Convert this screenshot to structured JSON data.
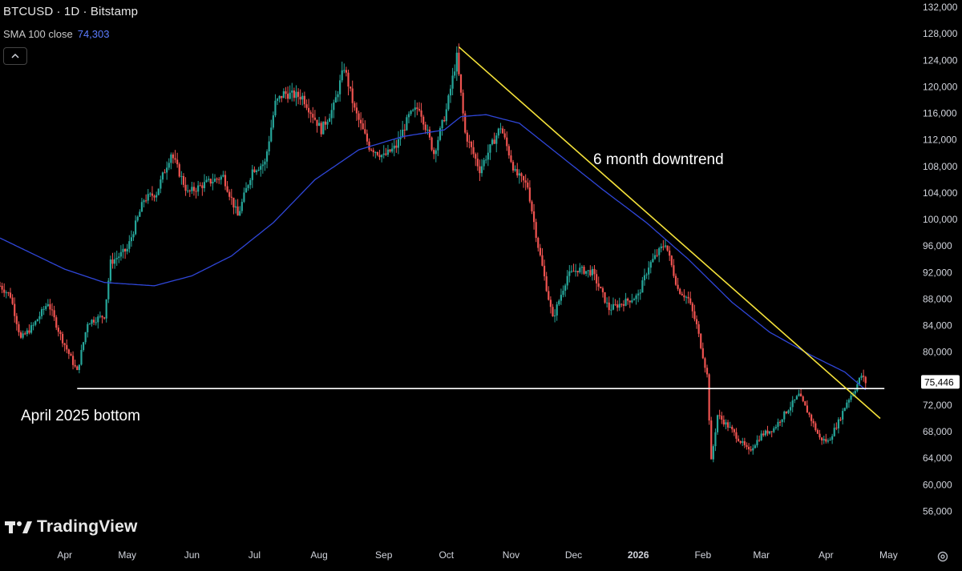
{
  "header": {
    "symbol_line": "BTCUSD · 1D · Bitstamp",
    "indicator_label": "SMA 100 close",
    "indicator_value": "74,303"
  },
  "branding": {
    "name": "TradingView"
  },
  "colors": {
    "up": "#26a69a",
    "down": "#ef5350",
    "sma": "#2f46d8",
    "trendline": "#f5e23a",
    "support": "#ffffff",
    "label_bg": "#ffffff"
  },
  "icons": {
    "collapse": "chevron-up-icon",
    "settings": "gear-icon",
    "logo": "tradingview-logo-icon"
  },
  "chart_data": {
    "type": "candlestick",
    "symbol": "BTCUSD",
    "interval": "1D",
    "exchange": "Bitstamp",
    "ylim": [
      54000,
      132000
    ],
    "y_ticks": [
      "132,000",
      "128,000",
      "124,000",
      "120,000",
      "116,000",
      "112,000",
      "108,000",
      "104,000",
      "100,000",
      "96,000",
      "92,000",
      "88,000",
      "84,000",
      "80,000",
      "72,000",
      "68,000",
      "64,000",
      "60,000",
      "56,000"
    ],
    "y_tick_values": [
      132000,
      128000,
      124000,
      120000,
      116000,
      112000,
      108000,
      104000,
      100000,
      96000,
      92000,
      88000,
      84000,
      80000,
      72000,
      68000,
      64000,
      60000,
      56000
    ],
    "x_ticks": [
      {
        "label": "Apr",
        "date": "2025-04-01"
      },
      {
        "label": "May",
        "date": "2025-05-01"
      },
      {
        "label": "Jun",
        "date": "2025-06-01"
      },
      {
        "label": "Jul",
        "date": "2025-07-01"
      },
      {
        "label": "Aug",
        "date": "2025-08-01"
      },
      {
        "label": "Sep",
        "date": "2025-09-01"
      },
      {
        "label": "Oct",
        "date": "2025-10-01"
      },
      {
        "label": "Nov",
        "date": "2025-11-01"
      },
      {
        "label": "Dec",
        "date": "2025-12-01"
      },
      {
        "label": "2026",
        "date": "2026-01-01",
        "bold": true
      },
      {
        "label": "Feb",
        "date": "2026-02-01"
      },
      {
        "label": "Mar",
        "date": "2026-03-01"
      },
      {
        "label": "Apr",
        "date": "2026-04-01"
      },
      {
        "label": "May",
        "date": "2026-05-01"
      }
    ],
    "x_range": [
      "2025-03-01",
      "2026-05-07"
    ],
    "price_label": "75,446",
    "last_price": 75446,
    "close_series": [
      {
        "date": "2025-03-01",
        "close": 90000
      },
      {
        "date": "2025-03-06",
        "close": 88500
      },
      {
        "date": "2025-03-11",
        "close": 82000
      },
      {
        "date": "2025-03-17",
        "close": 84000
      },
      {
        "date": "2025-03-24",
        "close": 87500
      },
      {
        "date": "2025-03-30",
        "close": 82500
      },
      {
        "date": "2025-04-07",
        "close": 77000
      },
      {
        "date": "2025-04-12",
        "close": 84500
      },
      {
        "date": "2025-04-20",
        "close": 85500
      },
      {
        "date": "2025-04-23",
        "close": 93500
      },
      {
        "date": "2025-05-01",
        "close": 95500
      },
      {
        "date": "2025-05-09",
        "close": 103000
      },
      {
        "date": "2025-05-15",
        "close": 104000
      },
      {
        "date": "2025-05-22",
        "close": 110000
      },
      {
        "date": "2025-05-30",
        "close": 104000
      },
      {
        "date": "2025-06-08",
        "close": 105500
      },
      {
        "date": "2025-06-16",
        "close": 106500
      },
      {
        "date": "2025-06-23",
        "close": 100500
      },
      {
        "date": "2025-06-30",
        "close": 107500
      },
      {
        "date": "2025-07-06",
        "close": 108500
      },
      {
        "date": "2025-07-11",
        "close": 117500
      },
      {
        "date": "2025-07-15",
        "close": 119000
      },
      {
        "date": "2025-07-24",
        "close": 118500
      },
      {
        "date": "2025-08-02",
        "close": 113500
      },
      {
        "date": "2025-08-08",
        "close": 117000
      },
      {
        "date": "2025-08-13",
        "close": 123000
      },
      {
        "date": "2025-08-18",
        "close": 116500
      },
      {
        "date": "2025-08-25",
        "close": 111000
      },
      {
        "date": "2025-09-01",
        "close": 109500
      },
      {
        "date": "2025-09-07",
        "close": 111000
      },
      {
        "date": "2025-09-13",
        "close": 115500
      },
      {
        "date": "2025-09-18",
        "close": 117000
      },
      {
        "date": "2025-09-25",
        "close": 110000
      },
      {
        "date": "2025-10-01",
        "close": 116500
      },
      {
        "date": "2025-10-06",
        "close": 124500
      },
      {
        "date": "2025-10-10",
        "close": 113000
      },
      {
        "date": "2025-10-17",
        "close": 107500
      },
      {
        "date": "2025-10-27",
        "close": 114000
      },
      {
        "date": "2025-11-03",
        "close": 107000
      },
      {
        "date": "2025-11-09",
        "close": 105000
      },
      {
        "date": "2025-11-14",
        "close": 96000
      },
      {
        "date": "2025-11-21",
        "close": 85000
      },
      {
        "date": "2025-11-28",
        "close": 91500
      },
      {
        "date": "2025-12-03",
        "close": 92500
      },
      {
        "date": "2025-12-10",
        "close": 92000
      },
      {
        "date": "2025-12-18",
        "close": 86500
      },
      {
        "date": "2025-12-25",
        "close": 87500
      },
      {
        "date": "2026-01-01",
        "close": 88500
      },
      {
        "date": "2026-01-06",
        "close": 93000
      },
      {
        "date": "2026-01-14",
        "close": 96500
      },
      {
        "date": "2026-01-20",
        "close": 89500
      },
      {
        "date": "2026-01-25",
        "close": 88000
      },
      {
        "date": "2026-01-29",
        "close": 84000
      },
      {
        "date": "2026-02-03",
        "close": 76500
      },
      {
        "date": "2026-02-05",
        "close": 63500
      },
      {
        "date": "2026-02-08",
        "close": 70500
      },
      {
        "date": "2026-02-14",
        "close": 68500
      },
      {
        "date": "2026-02-23",
        "close": 65000
      },
      {
        "date": "2026-03-01",
        "close": 67500
      },
      {
        "date": "2026-03-07",
        "close": 68500
      },
      {
        "date": "2026-03-14",
        "close": 71500
      },
      {
        "date": "2026-03-19",
        "close": 73500
      },
      {
        "date": "2026-03-24",
        "close": 70500
      },
      {
        "date": "2026-03-29",
        "close": 67000
      },
      {
        "date": "2026-04-02",
        "close": 66500
      },
      {
        "date": "2026-04-07",
        "close": 69500
      },
      {
        "date": "2026-04-11",
        "close": 72500
      },
      {
        "date": "2026-04-15",
        "close": 74500
      },
      {
        "date": "2026-04-18",
        "close": 76500
      },
      {
        "date": "2026-04-20",
        "close": 75446
      }
    ],
    "sma_series": [
      {
        "date": "2025-03-01",
        "value": 97200
      },
      {
        "date": "2025-04-01",
        "value": 92500
      },
      {
        "date": "2025-04-20",
        "value": 90500
      },
      {
        "date": "2025-05-14",
        "value": 90000
      },
      {
        "date": "2025-06-01",
        "value": 91500
      },
      {
        "date": "2025-06-20",
        "value": 94500
      },
      {
        "date": "2025-07-10",
        "value": 99500
      },
      {
        "date": "2025-07-30",
        "value": 106000
      },
      {
        "date": "2025-08-20",
        "value": 110500
      },
      {
        "date": "2025-09-10",
        "value": 112500
      },
      {
        "date": "2025-09-30",
        "value": 113500
      },
      {
        "date": "2025-10-08",
        "value": 115500
      },
      {
        "date": "2025-10-20",
        "value": 115800
      },
      {
        "date": "2025-11-05",
        "value": 114500
      },
      {
        "date": "2025-11-25",
        "value": 109500
      },
      {
        "date": "2025-12-15",
        "value": 104500
      },
      {
        "date": "2026-01-05",
        "value": 99500
      },
      {
        "date": "2026-01-25",
        "value": 94000
      },
      {
        "date": "2026-02-15",
        "value": 87500
      },
      {
        "date": "2026-03-05",
        "value": 83000
      },
      {
        "date": "2026-03-25",
        "value": 79500
      },
      {
        "date": "2026-04-10",
        "value": 77000
      },
      {
        "date": "2026-04-20",
        "value": 74303
      }
    ],
    "annotations": [
      {
        "type": "trendline",
        "label": "6 month downtrend",
        "from": {
          "date": "2025-10-07",
          "price": 126000
        },
        "to": {
          "date": "2026-04-27",
          "price": 70000
        }
      },
      {
        "type": "horizontal",
        "label": "April 2025 bottom",
        "price": 74500,
        "from_date": "2025-04-07",
        "to_date": "2026-04-29"
      }
    ]
  }
}
